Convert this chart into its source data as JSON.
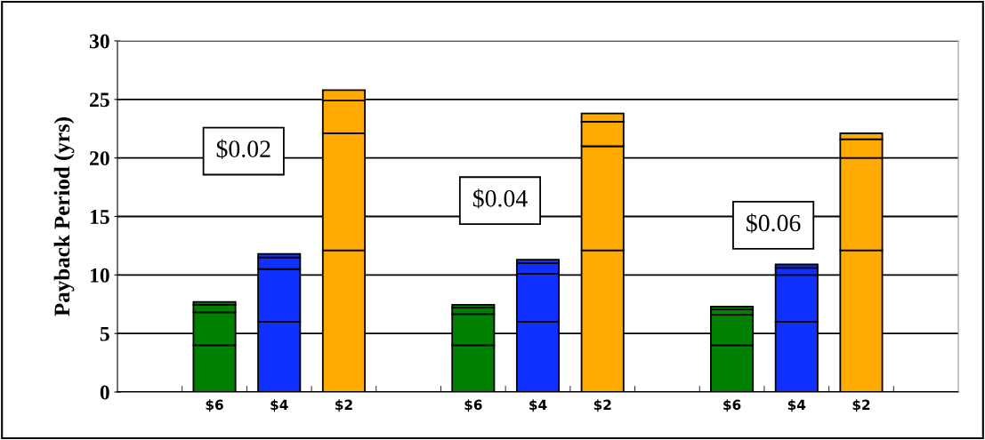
{
  "chart_data": {
    "type": "bar",
    "stacked": true,
    "ylabel": "Payback Period (yrs)",
    "categories": [
      null,
      "$6",
      "$4",
      "$2",
      null,
      "$6",
      "$4",
      "$2",
      null,
      "$6",
      "$4",
      "$2",
      null
    ],
    "series": [
      {
        "colors": [
          "#008000",
          "#008000",
          "#1030ff",
          "#ffaa00",
          "#008000",
          "#008000",
          "#1030ff",
          "#ffaa00",
          "#008000",
          "#008000",
          "#1030ff",
          "#ffaa00",
          "#008000"
        ],
        "values": [
          null,
          4.0,
          6.0,
          12.1,
          null,
          4.0,
          6.0,
          12.1,
          null,
          4.0,
          6.0,
          12.1,
          null
        ]
      },
      {
        "colors": [
          "#008000",
          "#008000",
          "#1030ff",
          "#ffaa00",
          "#008000",
          "#008000",
          "#1030ff",
          "#ffaa00",
          "#008000",
          "#008000",
          "#1030ff",
          "#ffaa00",
          "#008000"
        ],
        "values": [
          null,
          2.8,
          4.5,
          10.0,
          null,
          2.65,
          4.1,
          8.9,
          null,
          2.6,
          4.0,
          7.9,
          null
        ]
      },
      {
        "colors": [
          "#008000",
          "#008000",
          "#1030ff",
          "#ffaa00",
          "#008000",
          "#008000",
          "#1030ff",
          "#ffaa00",
          "#008000",
          "#008000",
          "#1030ff",
          "#ffaa00",
          "#008000"
        ],
        "values": [
          null,
          0.65,
          1.0,
          2.8,
          null,
          0.55,
          0.9,
          2.1,
          null,
          0.45,
          0.6,
          1.6,
          null
        ]
      },
      {
        "colors": [
          "#008000",
          "#008000",
          "#1030ff",
          "#ffaa00",
          "#008000",
          "#008000",
          "#1030ff",
          "#ffaa00",
          "#008000",
          "#008000",
          "#1030ff",
          "#ffaa00",
          "#008000"
        ],
        "values": [
          null,
          0.25,
          0.3,
          0.9,
          null,
          0.25,
          0.3,
          0.7,
          null,
          0.25,
          0.3,
          0.5,
          null
        ]
      }
    ],
    "annotations": [
      "$0.02",
      "$0.04",
      "$0.06"
    ],
    "ylim": [
      0,
      30
    ],
    "yticks": [
      0,
      5,
      10,
      15,
      20,
      25,
      30
    ],
    "grid": "y"
  }
}
